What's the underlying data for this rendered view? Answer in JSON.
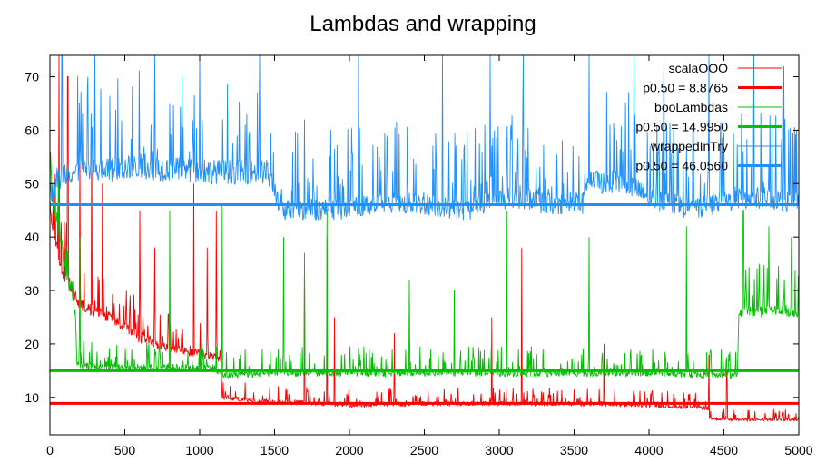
{
  "chart_data": {
    "type": "line",
    "title": "Lambdas and wrapping",
    "xlabel": "",
    "ylabel": "",
    "xlim": [
      0,
      5000
    ],
    "ylim": [
      3,
      74
    ],
    "x_ticks": [
      0,
      500,
      1000,
      1500,
      2000,
      2500,
      3000,
      3500,
      4000,
      4500,
      5000
    ],
    "y_ticks": [
      10,
      20,
      30,
      40,
      50,
      60,
      70
    ],
    "grid": false,
    "legend_position": "top-right",
    "series": [
      {
        "name": "scalaOOO",
        "color": "#ff0000",
        "kind": "noisy",
        "x": [
          0,
          40,
          80,
          150,
          200,
          300,
          400,
          500,
          600,
          700,
          800,
          900,
          1000,
          1100,
          1140,
          1150,
          1300,
          1500,
          1700,
          2000,
          2500,
          3000,
          3500,
          4000,
          4390,
          4400,
          4600,
          4800,
          5000
        ],
        "values": [
          45,
          38,
          33,
          30,
          27,
          26,
          25,
          23,
          21,
          20,
          19,
          18.5,
          18,
          17.5,
          17,
          10,
          9.5,
          9,
          9,
          8.5,
          8.8,
          8.8,
          8.8,
          8.5,
          8,
          6,
          5.8,
          5.8,
          5.8
        ],
        "spikes": [
          [
            60,
            74
          ],
          [
            120,
            70
          ],
          [
            200,
            55
          ],
          [
            280,
            60
          ],
          [
            350,
            50
          ],
          [
            600,
            45
          ],
          [
            700,
            38
          ],
          [
            960,
            50
          ],
          [
            1050,
            38
          ],
          [
            1110,
            45
          ],
          [
            1700,
            35
          ],
          [
            1850,
            40
          ],
          [
            1900,
            25
          ],
          [
            2300,
            22
          ],
          [
            2950,
            25
          ],
          [
            3150,
            38
          ],
          [
            3700,
            20
          ],
          [
            4400,
            18
          ],
          [
            4520,
            15
          ]
        ]
      },
      {
        "name": "p0.50 = 8.8765",
        "color": "#ff0000",
        "kind": "constant",
        "value": 8.8765
      },
      {
        "name": "booLambdas",
        "color": "#00c000",
        "kind": "noisy",
        "x": [
          0,
          100,
          170,
          180,
          400,
          800,
          1100,
          1150,
          1500,
          2000,
          2500,
          3000,
          3500,
          4000,
          4590,
          4600,
          4800,
          5000
        ],
        "values": [
          50,
          35,
          25,
          16,
          15.5,
          15.5,
          15.5,
          14,
          14.5,
          14.5,
          14.5,
          14.5,
          14.5,
          14.5,
          14,
          26,
          26,
          26
        ],
        "spikes": [
          [
            200,
            40
          ],
          [
            800,
            45
          ],
          [
            1150,
            46
          ],
          [
            1560,
            40
          ],
          [
            1700,
            37
          ],
          [
            1850,
            45
          ],
          [
            2400,
            32
          ],
          [
            2700,
            30
          ],
          [
            3050,
            45
          ],
          [
            3600,
            40
          ],
          [
            4250,
            42
          ],
          [
            4630,
            45
          ],
          [
            4800,
            42
          ],
          [
            4950,
            40
          ]
        ]
      },
      {
        "name": "p0.50 = 14.9950",
        "color": "#00c000",
        "kind": "constant",
        "value": 14.995
      },
      {
        "name": "wrappedInTry",
        "color": "#1e90ff",
        "kind": "noisy",
        "x": [
          0,
          100,
          300,
          600,
          1000,
          1450,
          1550,
          2000,
          2150,
          2500,
          2700,
          2800,
          3000,
          3270,
          3280,
          3560,
          3570,
          3850,
          4000,
          4300,
          4600,
          4800,
          5000
        ],
        "values": [
          48,
          52,
          52,
          53,
          52,
          52,
          45,
          45,
          46,
          46,
          45,
          45,
          47,
          47,
          46,
          46,
          50,
          50,
          47,
          45,
          47,
          47,
          46
        ],
        "spikes": [
          [
            80,
            74
          ],
          [
            300,
            74
          ],
          [
            700,
            74
          ],
          [
            1000,
            74
          ],
          [
            1400,
            74
          ],
          [
            1700,
            62
          ],
          [
            2060,
            74
          ],
          [
            2200,
            55
          ],
          [
            2620,
            74
          ],
          [
            2940,
            74
          ],
          [
            3160,
            74
          ],
          [
            3600,
            74
          ],
          [
            3900,
            74
          ],
          [
            4100,
            74
          ],
          [
            4400,
            74
          ],
          [
            4700,
            74
          ],
          [
            4900,
            72
          ]
        ]
      },
      {
        "name": "p0.50 = 46.0560",
        "color": "#1e90ff",
        "kind": "constant",
        "value": 46.056
      }
    ]
  }
}
